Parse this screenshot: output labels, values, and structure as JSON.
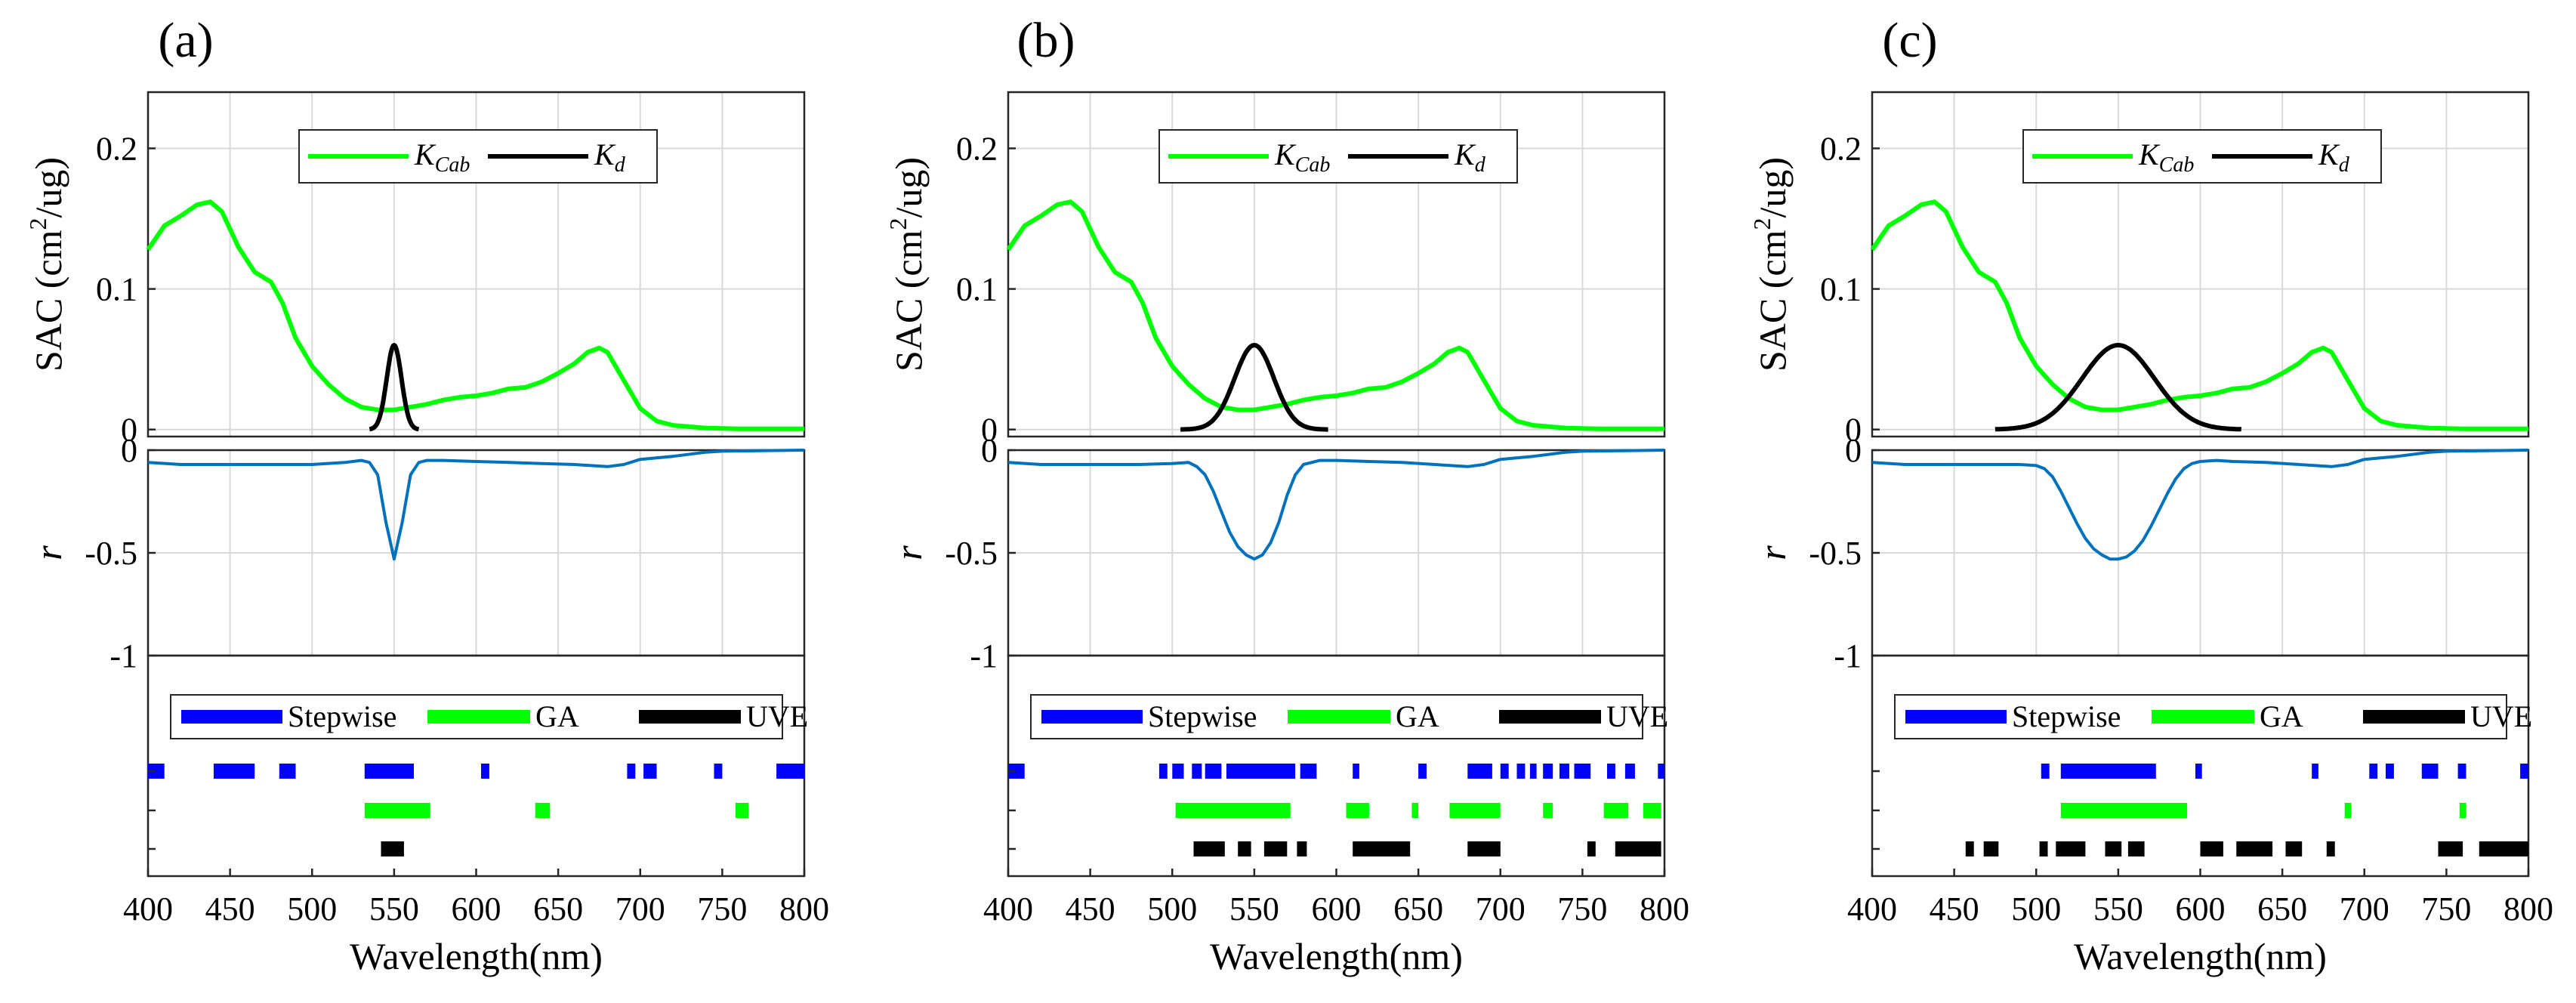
{
  "figure": {
    "colors": {
      "kcab": "#00ff00",
      "kd": "#000000",
      "r": "#0072bd",
      "stepwise": "#0000ff",
      "ga": "#00ff00",
      "uve": "#000000"
    }
  },
  "chart_data": [
    {
      "panel_label": "(a)",
      "sac": {
        "type": "line",
        "ylabel": "SAC (cm2/ug)",
        "ylabel_main": "SAC (cm",
        "ylabel_sup": "2",
        "ylabel_end": "/ug)",
        "ylim": [
          -0.005,
          0.24
        ],
        "yticks": [
          "0",
          "0.1",
          "0.2"
        ],
        "ytick_values": [
          0,
          0.1,
          0.2
        ],
        "legend": [
          {
            "name": "K",
            "sub": "Cab"
          },
          {
            "name": "K",
            "sub": "d"
          }
        ],
        "kcab": {
          "x": [
            400,
            410,
            420,
            430,
            438,
            445,
            455,
            465,
            475,
            482,
            490,
            500,
            510,
            520,
            530,
            540,
            550,
            560,
            570,
            580,
            590,
            600,
            610,
            620,
            630,
            640,
            650,
            660,
            668,
            675,
            680,
            690,
            700,
            710,
            720,
            740,
            760,
            800
          ],
          "y": [
            0.128,
            0.145,
            0.152,
            0.16,
            0.162,
            0.155,
            0.13,
            0.112,
            0.105,
            0.09,
            0.065,
            0.045,
            0.032,
            0.022,
            0.016,
            0.014,
            0.014,
            0.016,
            0.018,
            0.021,
            0.023,
            0.024,
            0.026,
            0.029,
            0.03,
            0.034,
            0.04,
            0.047,
            0.055,
            0.058,
            0.055,
            0.035,
            0.015,
            0.006,
            0.003,
            0.001,
            0.0005,
            0.0005
          ]
        },
        "kd": {
          "center": 550,
          "sigma": 4.5,
          "amplitude": 0.06,
          "range": [
            535,
            565
          ]
        }
      },
      "r": {
        "type": "line",
        "ylabel": "r",
        "ylim": [
          -1,
          0
        ],
        "yticks": [
          "-1",
          "-0.5",
          "0"
        ],
        "ytick_values": [
          -1,
          -0.5,
          0
        ],
        "x": [
          400,
          420,
          440,
          460,
          480,
          500,
          520,
          530,
          535,
          540,
          545,
          550,
          555,
          560,
          565,
          570,
          580,
          600,
          620,
          640,
          660,
          680,
          690,
          700,
          720,
          740,
          750,
          800
        ],
        "y": [
          -0.06,
          -0.07,
          -0.07,
          -0.07,
          -0.07,
          -0.07,
          -0.06,
          -0.05,
          -0.06,
          -0.12,
          -0.35,
          -0.53,
          -0.35,
          -0.12,
          -0.06,
          -0.05,
          -0.05,
          -0.055,
          -0.06,
          -0.065,
          -0.07,
          -0.08,
          -0.07,
          -0.045,
          -0.03,
          -0.01,
          -0.005,
          0
        ]
      },
      "bands": {
        "type": "bar",
        "legend": [
          "Stepwise",
          "GA",
          "UVE"
        ],
        "stepwise": [
          [
            400,
            410
          ],
          [
            440,
            465
          ],
          [
            480,
            490
          ],
          [
            532,
            562
          ],
          [
            603,
            608
          ],
          [
            692,
            697
          ],
          [
            702,
            710
          ],
          [
            745,
            750
          ],
          [
            783,
            800
          ]
        ],
        "ga": [
          [
            532,
            572
          ],
          [
            636,
            645
          ],
          [
            758,
            766
          ]
        ],
        "uve": [
          [
            542,
            556
          ]
        ]
      },
      "xaxis": {
        "xlabel": "Wavelength(nm)",
        "xlim": [
          400,
          800
        ],
        "xticks": [
          "400",
          "450",
          "500",
          "550",
          "600",
          "650",
          "700",
          "750",
          "800"
        ],
        "xtick_values": [
          400,
          450,
          500,
          550,
          600,
          650,
          700,
          750,
          800
        ]
      }
    },
    {
      "panel_label": "(b)",
      "sac": {
        "type": "line",
        "ylabel": "SAC (cm2/ug)",
        "ylabel_main": "SAC (cm",
        "ylabel_sup": "2",
        "ylabel_end": "/ug)",
        "ylim": [
          -0.005,
          0.24
        ],
        "yticks": [
          "0",
          "0.1",
          "0.2"
        ],
        "ytick_values": [
          0,
          0.1,
          0.2
        ],
        "legend": [
          {
            "name": "K",
            "sub": "Cab"
          },
          {
            "name": "K",
            "sub": "d"
          }
        ],
        "kcab": {
          "x": [
            400,
            410,
            420,
            430,
            438,
            445,
            455,
            465,
            475,
            482,
            490,
            500,
            510,
            520,
            530,
            540,
            550,
            560,
            570,
            580,
            590,
            600,
            610,
            620,
            630,
            640,
            650,
            660,
            668,
            675,
            680,
            690,
            700,
            710,
            720,
            740,
            760,
            800
          ],
          "y": [
            0.128,
            0.145,
            0.152,
            0.16,
            0.162,
            0.155,
            0.13,
            0.112,
            0.105,
            0.09,
            0.065,
            0.045,
            0.032,
            0.022,
            0.016,
            0.014,
            0.014,
            0.016,
            0.018,
            0.021,
            0.023,
            0.024,
            0.026,
            0.029,
            0.03,
            0.034,
            0.04,
            0.047,
            0.055,
            0.058,
            0.055,
            0.035,
            0.015,
            0.006,
            0.003,
            0.001,
            0.0005,
            0.0005
          ]
        },
        "kd": {
          "center": 550,
          "sigma": 12,
          "amplitude": 0.06,
          "range": [
            505,
            595
          ]
        }
      },
      "r": {
        "type": "line",
        "ylabel": "r",
        "ylim": [
          -1,
          0
        ],
        "yticks": [
          "-1",
          "-0.5",
          "0"
        ],
        "ytick_values": [
          -1,
          -0.5,
          0
        ],
        "x": [
          400,
          420,
          440,
          460,
          480,
          500,
          510,
          515,
          520,
          525,
          530,
          535,
          540,
          545,
          550,
          555,
          560,
          565,
          570,
          575,
          580,
          590,
          600,
          620,
          640,
          660,
          680,
          690,
          700,
          720,
          740,
          750,
          800
        ],
        "y": [
          -0.06,
          -0.07,
          -0.07,
          -0.07,
          -0.07,
          -0.065,
          -0.06,
          -0.08,
          -0.12,
          -0.2,
          -0.3,
          -0.4,
          -0.47,
          -0.51,
          -0.53,
          -0.51,
          -0.45,
          -0.35,
          -0.22,
          -0.12,
          -0.07,
          -0.05,
          -0.05,
          -0.055,
          -0.06,
          -0.07,
          -0.08,
          -0.07,
          -0.045,
          -0.03,
          -0.01,
          -0.005,
          0
        ]
      },
      "bands": {
        "type": "bar",
        "legend": [
          "Stepwise",
          "GA",
          "UVE"
        ],
        "stepwise": [
          [
            400,
            410
          ],
          [
            492,
            497
          ],
          [
            500,
            507
          ],
          [
            512,
            518
          ],
          [
            520,
            530
          ],
          [
            533,
            575
          ],
          [
            578,
            588
          ],
          [
            610,
            614
          ],
          [
            650,
            655
          ],
          [
            680,
            695
          ],
          [
            700,
            705
          ],
          [
            710,
            715
          ],
          [
            718,
            722
          ],
          [
            726,
            732
          ],
          [
            736,
            742
          ],
          [
            745,
            755
          ],
          [
            765,
            770
          ],
          [
            776,
            782
          ],
          [
            796,
            800
          ]
        ],
        "ga": [
          [
            502,
            572
          ],
          [
            606,
            620
          ],
          [
            646,
            650
          ],
          [
            669,
            700
          ],
          [
            726,
            732
          ],
          [
            763,
            778
          ],
          [
            787,
            798
          ]
        ],
        "uve": [
          [
            513,
            532
          ],
          [
            540,
            548
          ],
          [
            556,
            570
          ],
          [
            576,
            582
          ],
          [
            610,
            645
          ],
          [
            680,
            700
          ],
          [
            753,
            758
          ],
          [
            770,
            798
          ]
        ]
      },
      "xaxis": {
        "xlabel": "Wavelength(nm)",
        "xlim": [
          400,
          800
        ],
        "xticks": [
          "400",
          "450",
          "500",
          "550",
          "600",
          "650",
          "700",
          "750",
          "800"
        ],
        "xtick_values": [
          400,
          450,
          500,
          550,
          600,
          650,
          700,
          750,
          800
        ]
      }
    },
    {
      "panel_label": "(c)",
      "sac": {
        "type": "line",
        "ylabel": "SAC (cm2/ug)",
        "ylabel_main": "SAC (cm",
        "ylabel_sup": "2",
        "ylabel_end": "/ug)",
        "ylim": [
          -0.005,
          0.24
        ],
        "yticks": [
          "0",
          "0.1",
          "0.2"
        ],
        "ytick_values": [
          0,
          0.1,
          0.2
        ],
        "legend": [
          {
            "name": "K",
            "sub": "Cab"
          },
          {
            "name": "K",
            "sub": "d"
          }
        ],
        "kcab": {
          "x": [
            400,
            410,
            420,
            430,
            438,
            445,
            455,
            465,
            475,
            482,
            490,
            500,
            510,
            520,
            530,
            540,
            550,
            560,
            570,
            580,
            590,
            600,
            610,
            620,
            630,
            640,
            650,
            660,
            668,
            675,
            680,
            690,
            700,
            710,
            720,
            740,
            760,
            800
          ],
          "y": [
            0.128,
            0.145,
            0.152,
            0.16,
            0.162,
            0.155,
            0.13,
            0.112,
            0.105,
            0.09,
            0.065,
            0.045,
            0.032,
            0.022,
            0.016,
            0.014,
            0.014,
            0.016,
            0.018,
            0.021,
            0.023,
            0.024,
            0.026,
            0.029,
            0.03,
            0.034,
            0.04,
            0.047,
            0.055,
            0.058,
            0.055,
            0.035,
            0.015,
            0.006,
            0.003,
            0.001,
            0.0005,
            0.0005
          ]
        },
        "kd": {
          "center": 550,
          "sigma": 22,
          "amplitude": 0.06,
          "range": [
            475,
            625
          ]
        }
      },
      "r": {
        "type": "line",
        "ylabel": "r",
        "ylim": [
          -1,
          0
        ],
        "yticks": [
          "-1",
          "-0.5",
          "0"
        ],
        "ytick_values": [
          -1,
          -0.5,
          0
        ],
        "x": [
          400,
          420,
          440,
          460,
          480,
          490,
          500,
          505,
          510,
          515,
          520,
          525,
          530,
          535,
          540,
          545,
          550,
          555,
          560,
          565,
          570,
          575,
          580,
          585,
          590,
          595,
          600,
          610,
          620,
          640,
          660,
          680,
          690,
          700,
          720,
          740,
          750,
          800
        ],
        "y": [
          -0.06,
          -0.07,
          -0.07,
          -0.07,
          -0.07,
          -0.07,
          -0.075,
          -0.09,
          -0.13,
          -0.2,
          -0.28,
          -0.36,
          -0.43,
          -0.48,
          -0.51,
          -0.53,
          -0.53,
          -0.52,
          -0.49,
          -0.44,
          -0.37,
          -0.29,
          -0.21,
          -0.14,
          -0.09,
          -0.065,
          -0.055,
          -0.05,
          -0.055,
          -0.06,
          -0.07,
          -0.08,
          -0.07,
          -0.045,
          -0.03,
          -0.01,
          -0.005,
          0
        ]
      },
      "bands": {
        "type": "bar",
        "legend": [
          "Stepwise",
          "GA",
          "UVE"
        ],
        "stepwise": [
          [
            503,
            508
          ],
          [
            515,
            573
          ],
          [
            597,
            601
          ],
          [
            668,
            672
          ],
          [
            703,
            708
          ],
          [
            713,
            718
          ],
          [
            735,
            745
          ],
          [
            757,
            762
          ],
          [
            795,
            800
          ]
        ],
        "ga": [
          [
            515,
            592
          ],
          [
            688,
            692
          ],
          [
            758,
            762
          ]
        ],
        "uve": [
          [
            457,
            462
          ],
          [
            468,
            477
          ],
          [
            502,
            507
          ],
          [
            512,
            530
          ],
          [
            542,
            552
          ],
          [
            556,
            566
          ],
          [
            600,
            614
          ],
          [
            622,
            644
          ],
          [
            652,
            662
          ],
          [
            677,
            682
          ],
          [
            745,
            760
          ],
          [
            770,
            800
          ]
        ]
      },
      "xaxis": {
        "xlabel": "Wavelength(nm)",
        "xlim": [
          400,
          800
        ],
        "xticks": [
          "400",
          "450",
          "500",
          "550",
          "600",
          "650",
          "700",
          "750",
          "800"
        ],
        "xtick_values": [
          400,
          450,
          500,
          550,
          600,
          650,
          700,
          750,
          800
        ]
      }
    }
  ]
}
